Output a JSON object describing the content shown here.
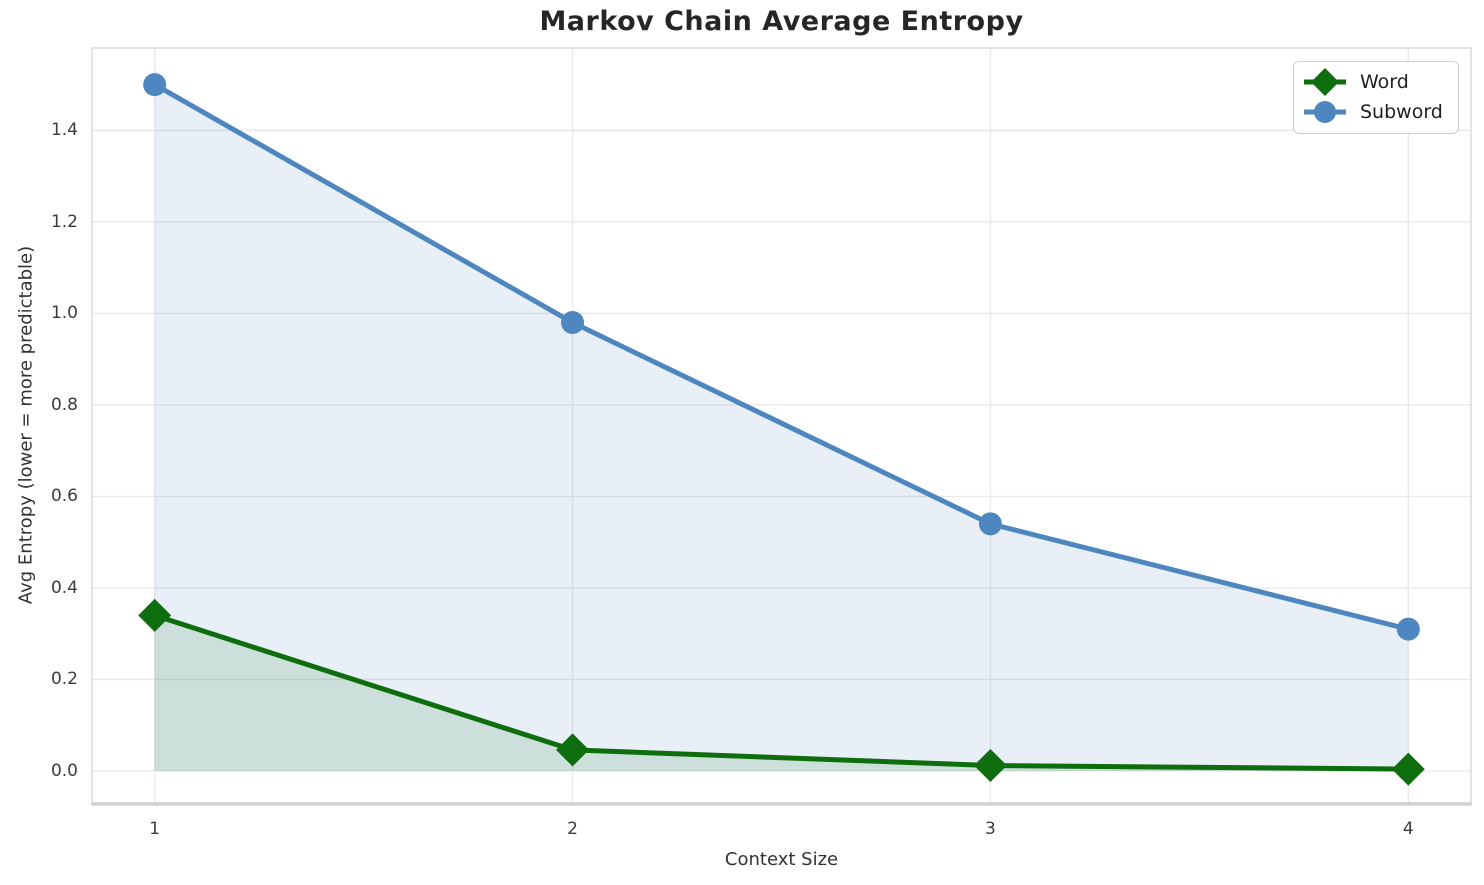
{
  "chart_data": {
    "type": "line",
    "title": "Markov Chain Average Entropy",
    "xlabel": "Context Size",
    "ylabel": "Avg Entropy (lower = more predictable)",
    "x": [
      1,
      2,
      3,
      4
    ],
    "series": [
      {
        "name": "Word",
        "color": "#0e6e0e",
        "marker": "diamond",
        "fill_alpha": 0.12,
        "values": [
          0.34,
          0.046,
          0.012,
          0.004
        ]
      },
      {
        "name": "Subword",
        "color": "#4e86c0",
        "marker": "circle",
        "fill_alpha": 0.13,
        "values": [
          1.5,
          0.98,
          0.54,
          0.31
        ]
      }
    ],
    "fill_to_zero": true,
    "xticks": [
      1,
      2,
      3,
      4
    ],
    "yticks": [
      "0.0",
      "0.2",
      "0.4",
      "0.6",
      "0.8",
      "1.0",
      "1.2",
      "1.4"
    ],
    "xlim": [
      0.85,
      4.15
    ],
    "ylim": [
      -0.07,
      1.58
    ],
    "grid": true,
    "legend_position": "upper right",
    "styles": {
      "grid_color": "#e9e9e9",
      "spine_color": "#dcdcdc",
      "bottom_spine_color": "#d0d0d0",
      "line_width": 5
    }
  }
}
